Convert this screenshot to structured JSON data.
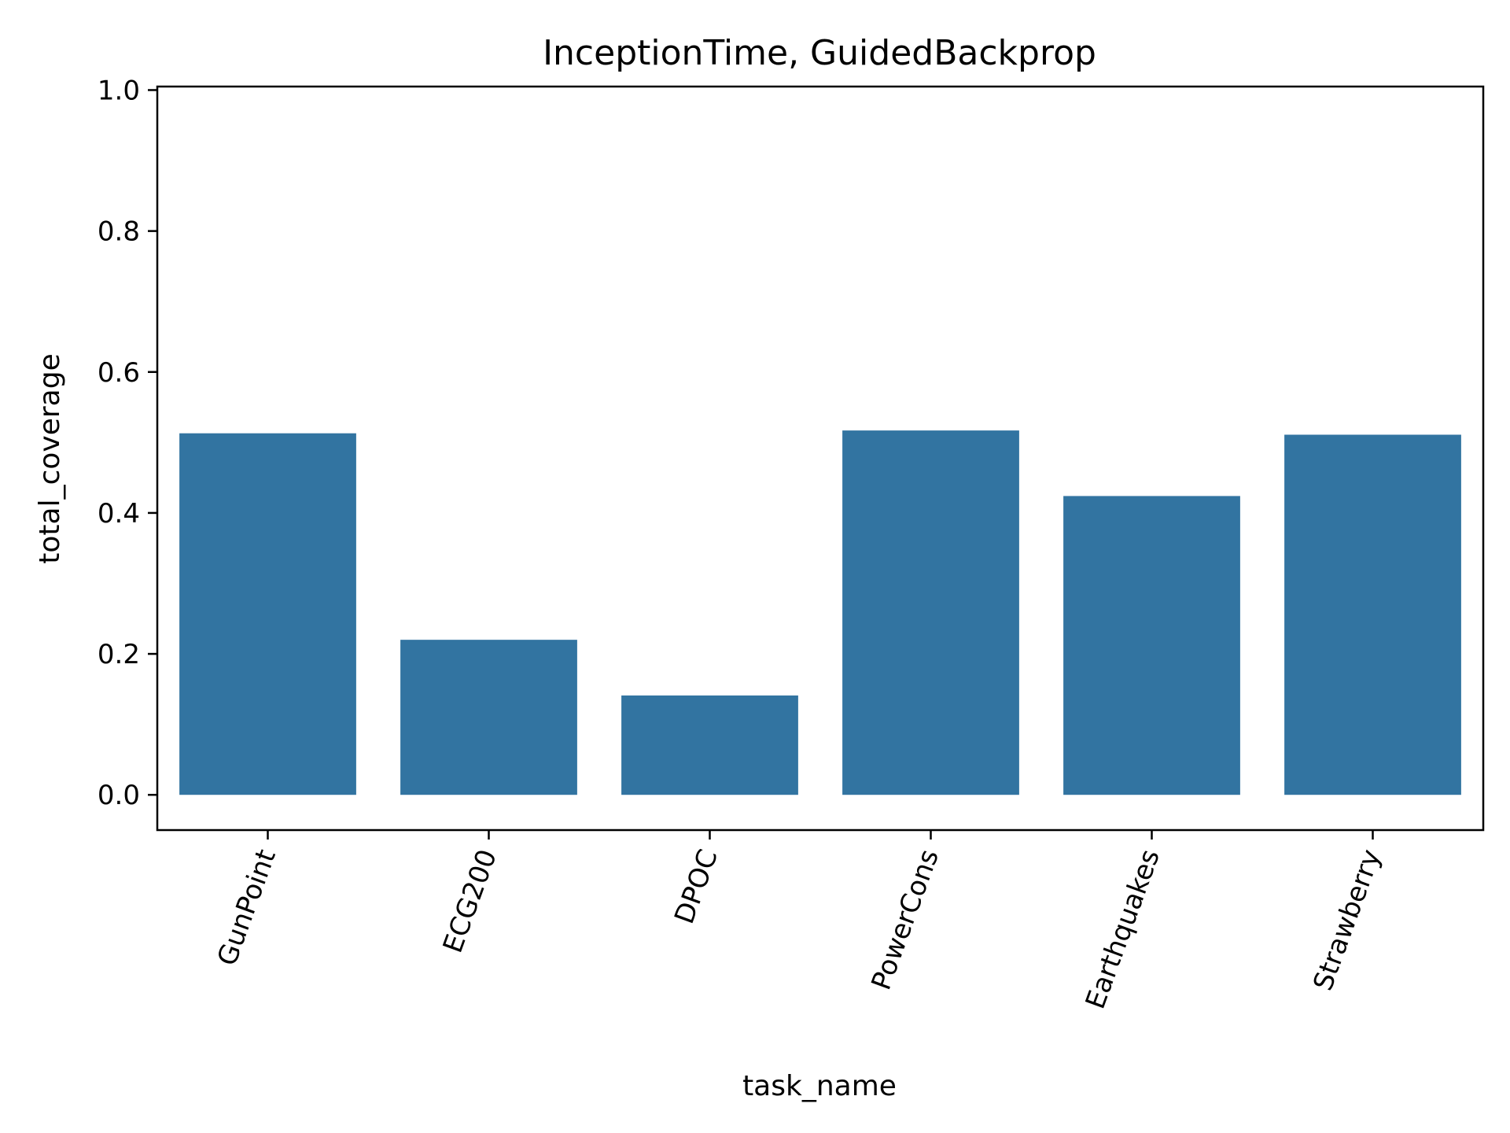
{
  "chart_data": {
    "type": "bar",
    "title": "InceptionTime, GuidedBackprop",
    "xlabel": "task_name",
    "ylabel": "total_coverage",
    "categories": [
      "GunPoint",
      "ECG200",
      "DPOC",
      "PowerCons",
      "Earthquakes",
      "Strawberry"
    ],
    "values": [
      0.513,
      0.22,
      0.141,
      0.517,
      0.424,
      0.511
    ],
    "yticks": [
      "0.0",
      "0.2",
      "0.4",
      "0.6",
      "0.8",
      "1.0"
    ],
    "ylim": [
      -0.05,
      1.005
    ],
    "grid": false,
    "bar_color": "#3274a1"
  }
}
